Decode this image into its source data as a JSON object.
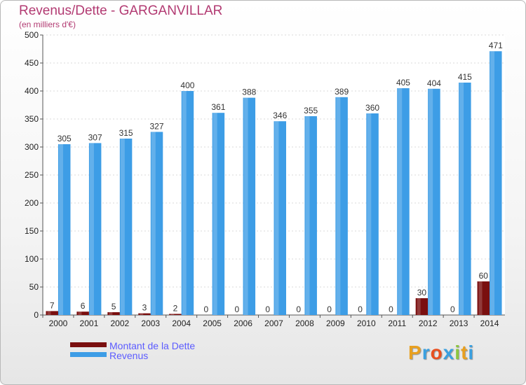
{
  "chart_data": {
    "type": "bar",
    "title": "Revenus/Dette - GARGANVILLAR",
    "subtitle": "(en milliers d'€)",
    "categories": [
      "2000",
      "2001",
      "2002",
      "2003",
      "2004",
      "2005",
      "2006",
      "2007",
      "2008",
      "2009",
      "2010",
      "2011",
      "2012",
      "2013",
      "2014"
    ],
    "series": [
      {
        "name": "Montant de la Dette",
        "color": "#7a0f0f",
        "values": [
          7,
          6,
          5,
          3,
          2,
          0,
          0,
          0,
          0,
          0,
          0,
          0,
          30,
          0,
          60
        ]
      },
      {
        "name": "Revenus",
        "color": "#3d9de6",
        "values": [
          305,
          307,
          315,
          327,
          400,
          361,
          388,
          346,
          355,
          389,
          360,
          405,
          404,
          415,
          471
        ]
      }
    ],
    "ylim": [
      0,
      500
    ],
    "yticks": [
      0,
      50,
      100,
      150,
      200,
      250,
      300,
      350,
      400,
      450,
      500
    ],
    "grid": true,
    "legend": "bottom-left"
  },
  "logo": {
    "letters": [
      "P",
      "r",
      "o",
      "x",
      "i",
      "t",
      "i"
    ],
    "colors": [
      "#e8a020",
      "#3aa0e0",
      "#e85020",
      "#3aa0e0",
      "#8cc63f",
      "#e8a020",
      "#3aa0e0"
    ]
  }
}
